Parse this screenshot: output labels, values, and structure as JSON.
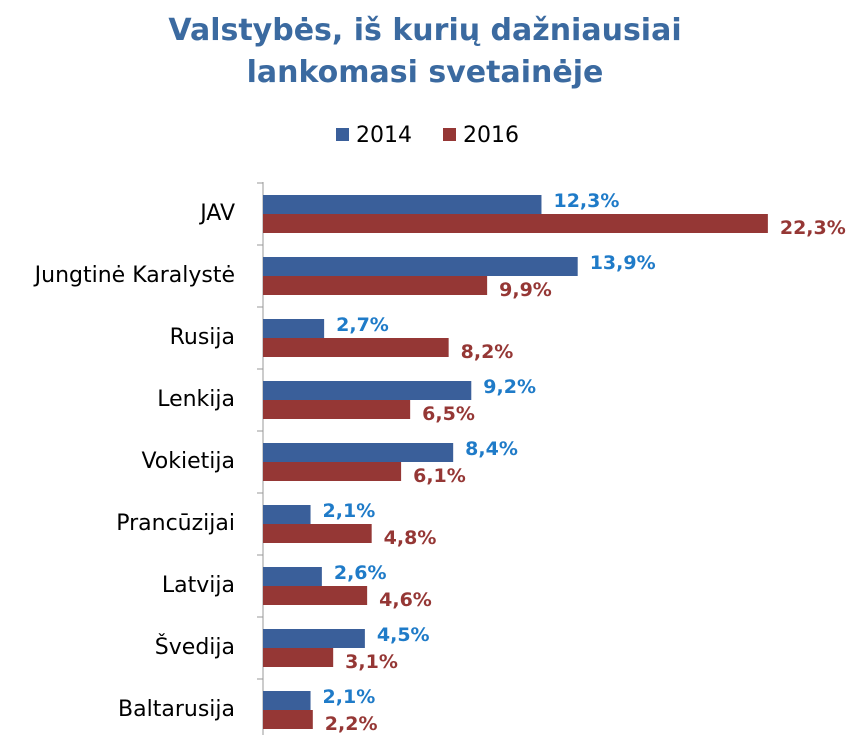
{
  "chart_data": {
    "type": "hbar",
    "title": "Valstybės, iš kurių dažniausiai lankomasi svetainėje",
    "categories": [
      "JAV",
      "Jungtinė Karalystė",
      "Rusija",
      "Lenkija",
      "Vokietija",
      "Prancūzijai",
      "Latvija",
      "Švedija",
      "Baltarusija"
    ],
    "series": [
      {
        "name": "2014",
        "color": "#3a5f9a",
        "label_color": "#1f7bc8",
        "values": [
          12.3,
          13.9,
          2.7,
          9.2,
          8.4,
          2.1,
          2.6,
          4.5,
          2.1
        ],
        "value_labels": [
          "12,3%",
          "13,9%",
          "2,7%",
          "9,2%",
          "8,4%",
          "2,1%",
          "2,6%",
          "4,5%",
          "2,1%"
        ]
      },
      {
        "name": "2016",
        "color": "#953735",
        "label_color": "#953735",
        "values": [
          22.3,
          9.9,
          8.2,
          6.5,
          6.1,
          4.8,
          4.6,
          3.1,
          2.2
        ],
        "value_labels": [
          "22,3%",
          "9,9%",
          "8,2%",
          "6,5%",
          "6,1%",
          "4,8%",
          "4,6%",
          "3,1%",
          "2,2%"
        ]
      }
    ],
    "xlim": [
      0,
      25
    ],
    "legend": "top"
  }
}
